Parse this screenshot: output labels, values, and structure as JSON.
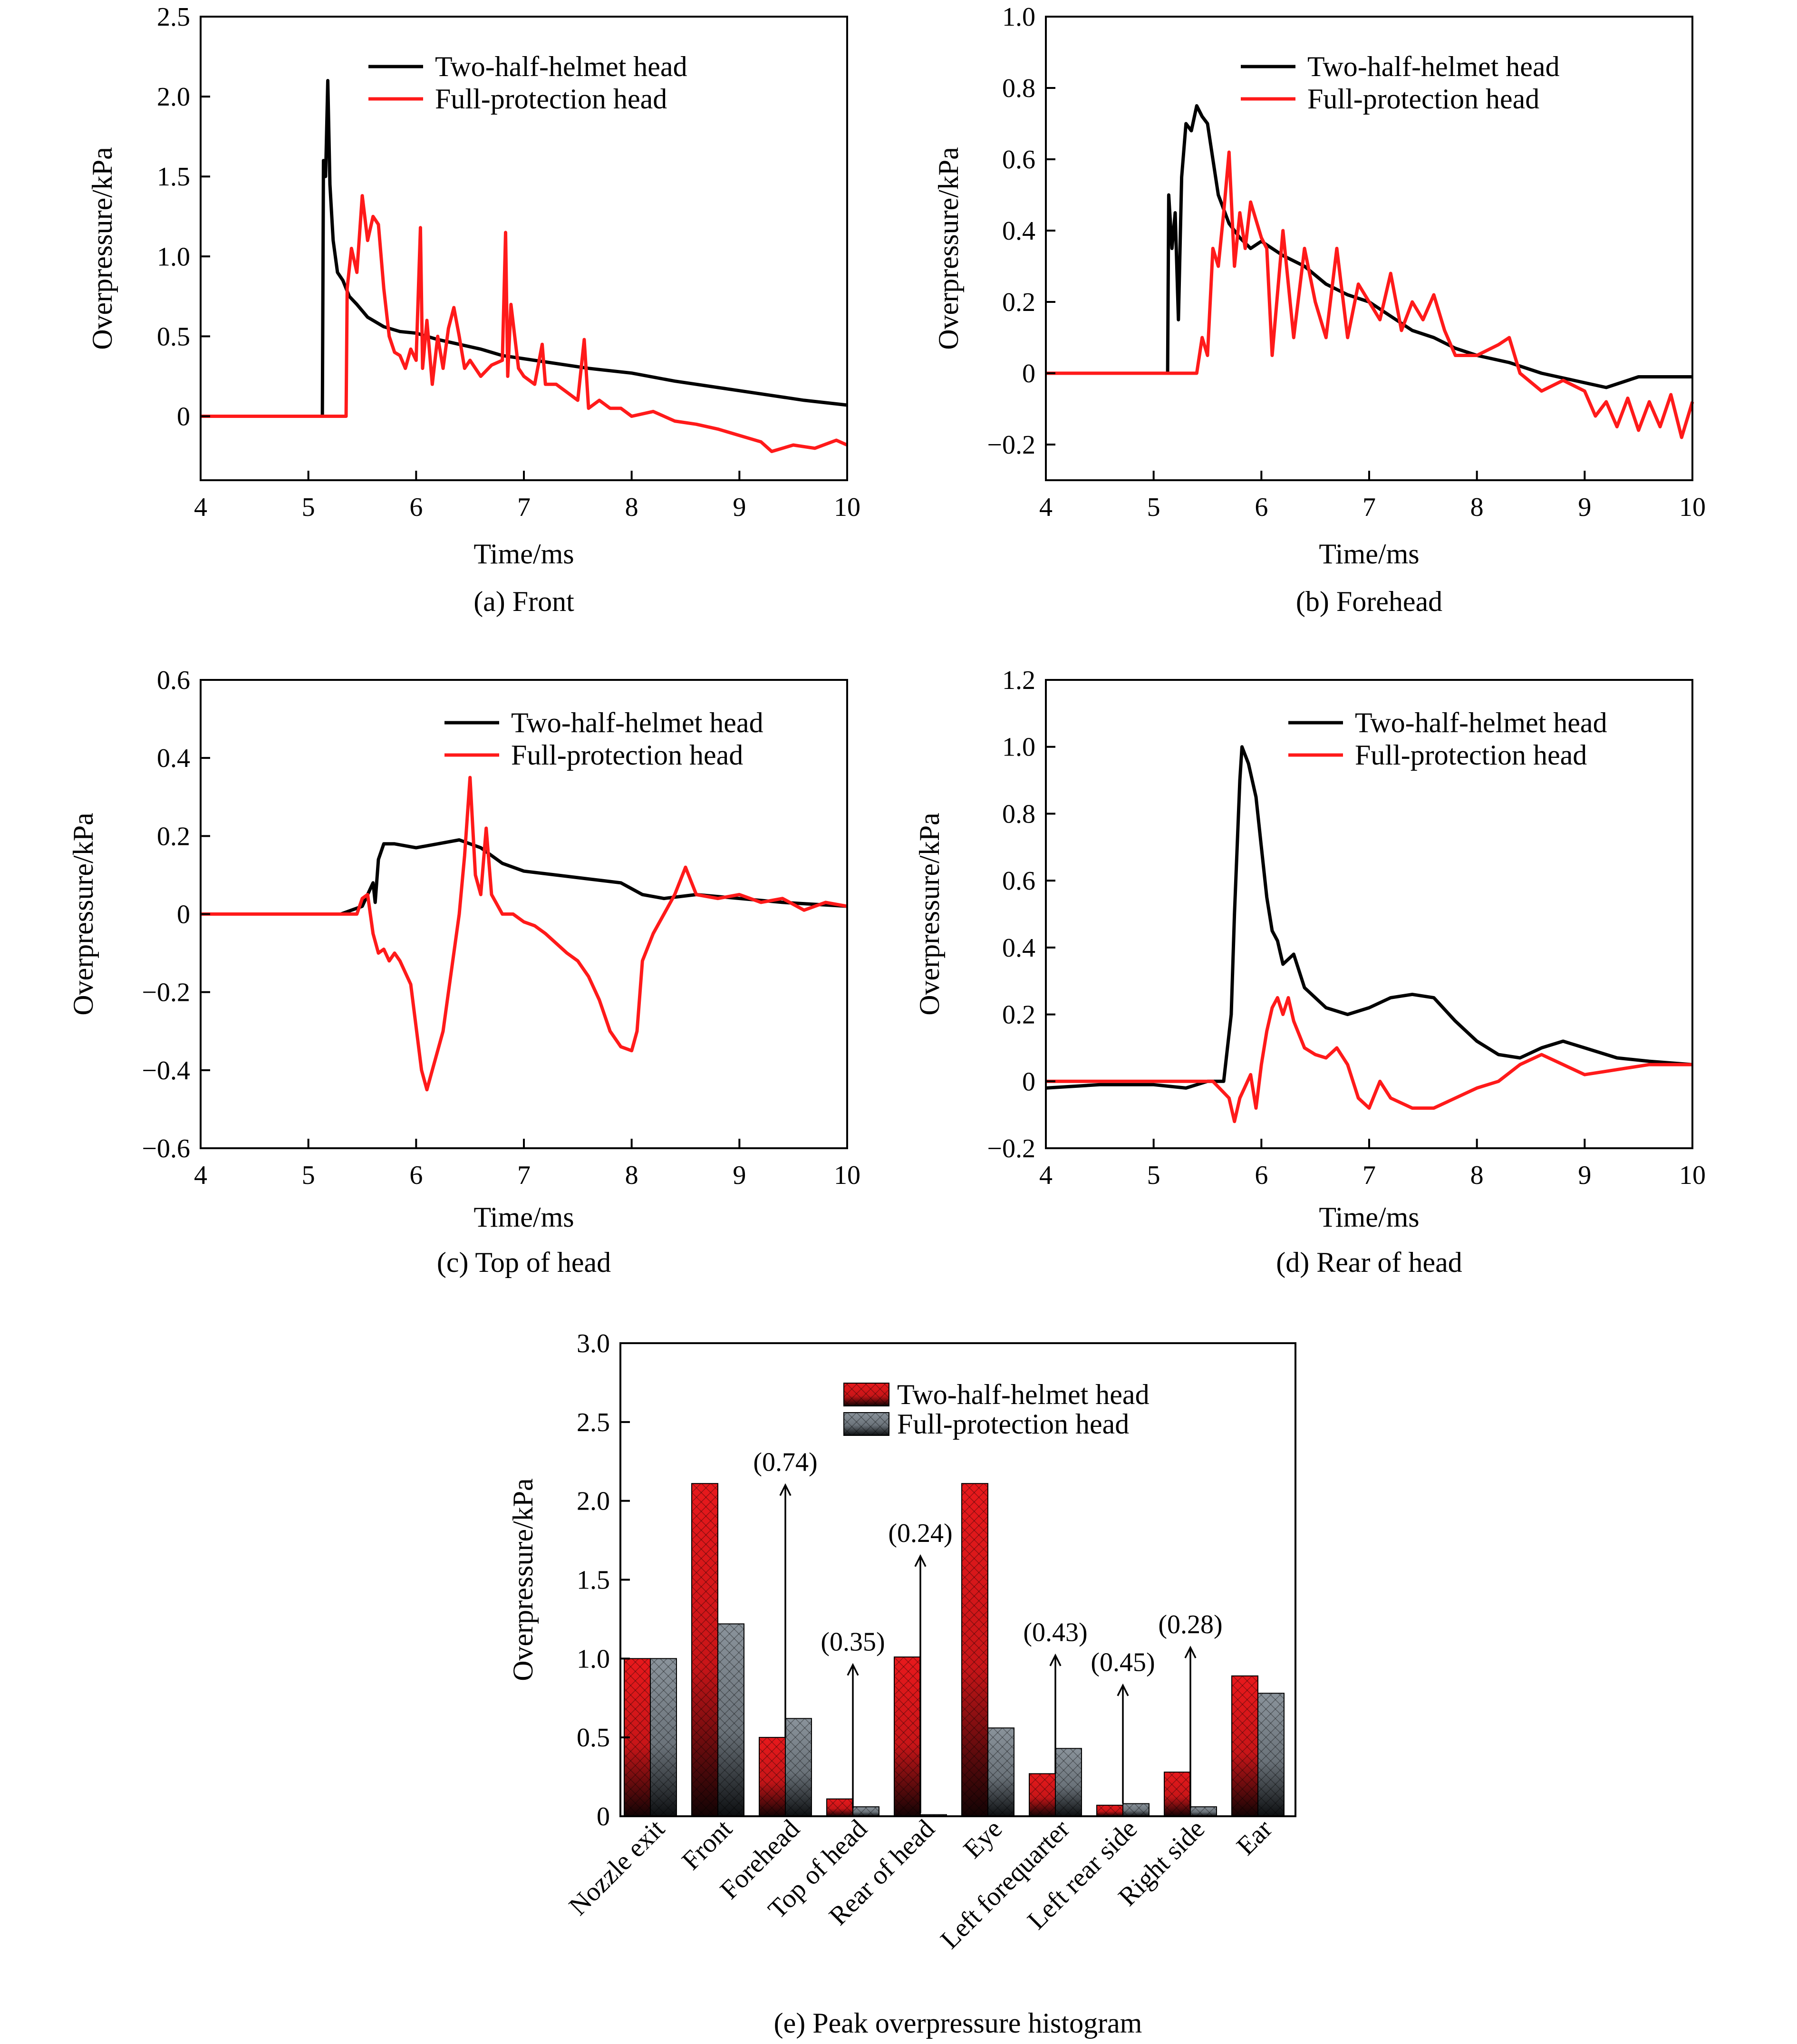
{
  "chart_data": [
    {
      "id": "a",
      "type": "line",
      "caption": "(a) Front",
      "xlabel": "Time/ms",
      "ylabel": "Overpressure/kPa",
      "xlim": [
        4,
        10
      ],
      "ylim": [
        -0.4,
        2.5
      ],
      "xticks": [
        4,
        5,
        6,
        7,
        8,
        9,
        10
      ],
      "yticks": [
        0,
        0.5,
        1.0,
        1.5,
        2.0,
        2.5
      ],
      "ytick_labels": [
        "0",
        "0.5",
        "1.0",
        "1.5",
        "2.0",
        "2.5"
      ],
      "legend_position": "top-right",
      "series": [
        {
          "name": "Two-half-helmet head",
          "color": "#000000",
          "x": [
            4,
            5.13,
            5.14,
            5.16,
            5.18,
            5.2,
            5.23,
            5.27,
            5.32,
            5.38,
            5.45,
            5.55,
            5.7,
            5.85,
            6.0,
            6.2,
            6.4,
            6.6,
            6.8,
            7.0,
            7.3,
            7.6,
            8.0,
            8.4,
            8.8,
            9.2,
            9.6,
            10.0
          ],
          "y": [
            0,
            0,
            1.6,
            1.5,
            2.1,
            1.45,
            1.1,
            0.9,
            0.85,
            0.75,
            0.7,
            0.62,
            0.56,
            0.53,
            0.52,
            0.48,
            0.45,
            0.42,
            0.38,
            0.36,
            0.33,
            0.3,
            0.27,
            0.22,
            0.18,
            0.14,
            0.1,
            0.07
          ]
        },
        {
          "name": "Full-protection head",
          "color": "#ff1a1a",
          "x": [
            4,
            5.35,
            5.36,
            5.4,
            5.45,
            5.5,
            5.55,
            5.6,
            5.65,
            5.7,
            5.75,
            5.8,
            5.85,
            5.9,
            5.95,
            6.0,
            6.04,
            6.06,
            6.1,
            6.15,
            6.2,
            6.25,
            6.3,
            6.35,
            6.4,
            6.45,
            6.5,
            6.55,
            6.6,
            6.7,
            6.8,
            6.83,
            6.85,
            6.88,
            6.95,
            7.0,
            7.1,
            7.17,
            7.2,
            7.3,
            7.4,
            7.5,
            7.56,
            7.6,
            7.7,
            7.8,
            7.9,
            8.0,
            8.2,
            8.4,
            8.6,
            8.8,
            9.0,
            9.2,
            9.3,
            9.5,
            9.7,
            9.9,
            10.0
          ],
          "y": [
            0,
            0,
            0.8,
            1.05,
            0.9,
            1.38,
            1.1,
            1.25,
            1.2,
            0.8,
            0.5,
            0.4,
            0.38,
            0.3,
            0.42,
            0.35,
            1.18,
            0.3,
            0.6,
            0.2,
            0.5,
            0.3,
            0.55,
            0.68,
            0.5,
            0.3,
            0.35,
            0.3,
            0.25,
            0.32,
            0.35,
            1.15,
            0.25,
            0.7,
            0.3,
            0.25,
            0.2,
            0.45,
            0.2,
            0.2,
            0.15,
            0.1,
            0.48,
            0.05,
            0.1,
            0.05,
            0.05,
            0.0,
            0.03,
            -0.03,
            -0.05,
            -0.08,
            -0.12,
            -0.16,
            -0.22,
            -0.18,
            -0.2,
            -0.15,
            -0.18
          ]
        }
      ]
    },
    {
      "id": "b",
      "type": "line",
      "caption": "(b) Forehead",
      "xlabel": "Time/ms",
      "ylabel": "Overpressure/kPa",
      "xlim": [
        4,
        10
      ],
      "ylim": [
        -0.3,
        1.0
      ],
      "xticks": [
        4,
        5,
        6,
        7,
        8,
        9,
        10
      ],
      "yticks": [
        -0.2,
        0,
        0.2,
        0.4,
        0.6,
        0.8,
        1.0
      ],
      "ytick_labels": [
        "−0.2",
        "0",
        "0.2",
        "0.4",
        "0.6",
        "0.8",
        "1.0"
      ],
      "legend_position": "top-right",
      "series": [
        {
          "name": "Two-half-helmet head",
          "color": "#000000",
          "x": [
            4,
            5.13,
            5.14,
            5.17,
            5.2,
            5.23,
            5.26,
            5.3,
            5.35,
            5.4,
            5.45,
            5.5,
            5.55,
            5.6,
            5.7,
            5.8,
            5.9,
            6.0,
            6.2,
            6.4,
            6.6,
            6.8,
            7.0,
            7.2,
            7.4,
            7.6,
            7.8,
            8.0,
            8.3,
            8.6,
            8.9,
            9.2,
            9.5,
            10.0
          ],
          "y": [
            0,
            0,
            0.5,
            0.35,
            0.45,
            0.15,
            0.55,
            0.7,
            0.68,
            0.75,
            0.72,
            0.7,
            0.6,
            0.5,
            0.42,
            0.38,
            0.35,
            0.37,
            0.33,
            0.3,
            0.25,
            0.22,
            0.2,
            0.16,
            0.12,
            0.1,
            0.07,
            0.05,
            0.03,
            0.0,
            -0.02,
            -0.04,
            -0.01,
            -0.01
          ]
        },
        {
          "name": "Full-protection head",
          "color": "#ff1a1a",
          "x": [
            4,
            5.4,
            5.45,
            5.5,
            5.55,
            5.6,
            5.65,
            5.7,
            5.75,
            5.8,
            5.85,
            5.9,
            6.0,
            6.05,
            6.1,
            6.2,
            6.3,
            6.4,
            6.5,
            6.6,
            6.7,
            6.8,
            6.9,
            7.0,
            7.1,
            7.2,
            7.3,
            7.4,
            7.5,
            7.6,
            7.7,
            7.8,
            8.0,
            8.2,
            8.3,
            8.4,
            8.6,
            8.8,
            9.0,
            9.1,
            9.2,
            9.3,
            9.4,
            9.5,
            9.6,
            9.7,
            9.8,
            9.9,
            10.0
          ],
          "y": [
            0,
            0,
            0.1,
            0.05,
            0.35,
            0.3,
            0.45,
            0.62,
            0.3,
            0.45,
            0.35,
            0.48,
            0.38,
            0.35,
            0.05,
            0.4,
            0.1,
            0.35,
            0.2,
            0.1,
            0.35,
            0.1,
            0.25,
            0.2,
            0.15,
            0.28,
            0.12,
            0.2,
            0.15,
            0.22,
            0.12,
            0.05,
            0.05,
            0.08,
            0.1,
            0.0,
            -0.05,
            -0.02,
            -0.05,
            -0.12,
            -0.08,
            -0.15,
            -0.07,
            -0.16,
            -0.08,
            -0.15,
            -0.06,
            -0.18,
            -0.08
          ]
        }
      ]
    },
    {
      "id": "c",
      "type": "line",
      "caption": "(c) Top of head",
      "xlabel": "Time/ms",
      "ylabel": "Overpressure/kPa",
      "xlim": [
        4,
        10
      ],
      "ylim": [
        -0.6,
        0.6
      ],
      "xticks": [
        4,
        5,
        6,
        7,
        8,
        9,
        10
      ],
      "yticks": [
        -0.6,
        -0.4,
        -0.2,
        0,
        0.2,
        0.4,
        0.6
      ],
      "ytick_labels": [
        "−0.6",
        "−0.4",
        "−0.2",
        "0",
        "0.2",
        "0.4",
        "0.6"
      ],
      "legend_position": "top-right",
      "series": [
        {
          "name": "Two-half-helmet head",
          "color": "#000000",
          "x": [
            4,
            5.3,
            5.4,
            5.5,
            5.55,
            5.6,
            5.62,
            5.65,
            5.7,
            5.8,
            6.0,
            6.2,
            6.4,
            6.6,
            6.8,
            7.0,
            7.3,
            7.6,
            7.9,
            8.1,
            8.3,
            8.6,
            9.0,
            9.4,
            10.0
          ],
          "y": [
            0,
            0,
            0.01,
            0.02,
            0.05,
            0.08,
            0.03,
            0.14,
            0.18,
            0.18,
            0.17,
            0.18,
            0.19,
            0.17,
            0.13,
            0.11,
            0.1,
            0.09,
            0.08,
            0.05,
            0.04,
            0.05,
            0.04,
            0.03,
            0.02
          ]
        },
        {
          "name": "Full-protection head",
          "color": "#ff1a1a",
          "x": [
            4,
            5.45,
            5.5,
            5.55,
            5.6,
            5.65,
            5.7,
            5.75,
            5.8,
            5.85,
            5.95,
            6.05,
            6.1,
            6.15,
            6.2,
            6.25,
            6.3,
            6.4,
            6.45,
            6.5,
            6.52,
            6.55,
            6.6,
            6.65,
            6.7,
            6.8,
            6.9,
            7.0,
            7.1,
            7.2,
            7.4,
            7.5,
            7.6,
            7.7,
            7.8,
            7.9,
            8.0,
            8.05,
            8.1,
            8.2,
            8.3,
            8.4,
            8.5,
            8.6,
            8.8,
            9.0,
            9.2,
            9.4,
            9.6,
            9.8,
            10.0
          ],
          "y": [
            0,
            0,
            0.04,
            0.05,
            -0.05,
            -0.1,
            -0.09,
            -0.12,
            -0.1,
            -0.12,
            -0.18,
            -0.4,
            -0.45,
            -0.4,
            -0.35,
            -0.3,
            -0.2,
            0.0,
            0.15,
            0.35,
            0.25,
            0.1,
            0.05,
            0.22,
            0.05,
            0.0,
            0.0,
            -0.02,
            -0.03,
            -0.05,
            -0.1,
            -0.12,
            -0.16,
            -0.22,
            -0.3,
            -0.34,
            -0.35,
            -0.3,
            -0.12,
            -0.05,
            0.0,
            0.05,
            0.12,
            0.05,
            0.04,
            0.05,
            0.03,
            0.04,
            0.01,
            0.03,
            0.02
          ]
        }
      ]
    },
    {
      "id": "d",
      "type": "line",
      "caption": "(d) Rear of head",
      "xlabel": "Time/ms",
      "ylabel": "Overpressure/kPa",
      "xlim": [
        4,
        10
      ],
      "ylim": [
        -0.2,
        1.2
      ],
      "xticks": [
        4,
        5,
        6,
        7,
        8,
        9,
        10
      ],
      "yticks": [
        -0.2,
        0,
        0.2,
        0.4,
        0.6,
        0.8,
        1.0,
        1.2
      ],
      "ytick_labels": [
        "−0.2",
        "0",
        "0.2",
        "0.4",
        "0.6",
        "0.8",
        "1.0",
        "1.2"
      ],
      "legend_position": "top-right",
      "series": [
        {
          "name": "Two-half-helmet head",
          "color": "#000000",
          "x": [
            4,
            4.5,
            5.0,
            5.3,
            5.5,
            5.65,
            5.72,
            5.75,
            5.8,
            5.82,
            5.88,
            5.95,
            6.0,
            6.05,
            6.1,
            6.15,
            6.2,
            6.3,
            6.4,
            6.5,
            6.6,
            6.8,
            7.0,
            7.2,
            7.4,
            7.6,
            7.8,
            8.0,
            8.2,
            8.4,
            8.6,
            8.8,
            9.0,
            9.3,
            9.6,
            10.0
          ],
          "y": [
            -0.02,
            -0.01,
            -0.01,
            -0.02,
            0.0,
            0.0,
            0.2,
            0.5,
            0.9,
            1.0,
            0.95,
            0.85,
            0.7,
            0.55,
            0.45,
            0.42,
            0.35,
            0.38,
            0.28,
            0.25,
            0.22,
            0.2,
            0.22,
            0.25,
            0.26,
            0.25,
            0.18,
            0.12,
            0.08,
            0.07,
            0.1,
            0.12,
            0.1,
            0.07,
            0.06,
            0.05
          ]
        },
        {
          "name": "Full-protection head",
          "color": "#ff1a1a",
          "x": [
            4,
            5.55,
            5.7,
            5.75,
            5.8,
            5.9,
            5.95,
            6.0,
            6.05,
            6.1,
            6.15,
            6.2,
            6.25,
            6.3,
            6.4,
            6.5,
            6.6,
            6.7,
            6.8,
            6.9,
            7.0,
            7.1,
            7.2,
            7.4,
            7.6,
            7.8,
            8.0,
            8.2,
            8.4,
            8.6,
            8.8,
            9.0,
            9.2,
            9.4,
            9.6,
            9.8,
            10.0
          ],
          "y": [
            0,
            0,
            -0.05,
            -0.12,
            -0.05,
            0.02,
            -0.08,
            0.05,
            0.15,
            0.22,
            0.25,
            0.2,
            0.25,
            0.18,
            0.1,
            0.08,
            0.07,
            0.1,
            0.05,
            -0.05,
            -0.08,
            0.0,
            -0.05,
            -0.08,
            -0.08,
            -0.05,
            -0.02,
            0.0,
            0.05,
            0.08,
            0.05,
            0.02,
            0.03,
            0.04,
            0.05,
            0.05,
            0.05
          ]
        }
      ]
    },
    {
      "id": "e",
      "type": "bar",
      "caption": "(e) Peak overpressure histogram",
      "xlabel": "",
      "ylabel": "Overpressure/kPa",
      "ylim": [
        0,
        3.0
      ],
      "yticks": [
        0,
        0.5,
        1.0,
        1.5,
        2.0,
        2.5,
        3.0
      ],
      "ytick_labels": [
        "0",
        "0.5",
        "1.0",
        "1.5",
        "2.0",
        "2.5",
        "3.0"
      ],
      "legend_position": "top-right",
      "categories": [
        "Nozzle exit",
        "Front",
        "Forehead",
        "Top of head",
        "Rear of head",
        "Eye",
        "Left forequarter",
        "Left rear side",
        "Right side",
        "Ear"
      ],
      "series": [
        {
          "name": "Two-half-helmet head",
          "color": "#e8191c",
          "values": [
            1.0,
            2.11,
            0.5,
            0.11,
            1.01,
            2.11,
            0.27,
            0.07,
            0.28,
            0.89
          ]
        },
        {
          "name": "Full-protection head",
          "color": "#7e878f",
          "values": [
            1.0,
            1.22,
            0.62,
            0.06,
            0.01,
            0.56,
            0.43,
            0.08,
            0.06,
            0.78
          ]
        }
      ],
      "annotations": [
        {
          "category_index": 2,
          "text": "(0.74)",
          "arrow_from": 0.5,
          "arrow_to": 2.1
        },
        {
          "category_index": 3,
          "text": "(0.35)",
          "arrow_from": 0.05,
          "arrow_to": 0.96
        },
        {
          "category_index": 4,
          "text": "(0.24)",
          "arrow_from": 0.02,
          "arrow_to": 1.65
        },
        {
          "category_index": 6,
          "text": "(0.43)",
          "arrow_from": 0.27,
          "arrow_to": 1.02
        },
        {
          "category_index": 7,
          "text": "(0.45)",
          "arrow_from": 0.08,
          "arrow_to": 0.83
        },
        {
          "category_index": 8,
          "text": "(0.28)",
          "arrow_from": 0.05,
          "arrow_to": 1.07
        }
      ]
    }
  ]
}
